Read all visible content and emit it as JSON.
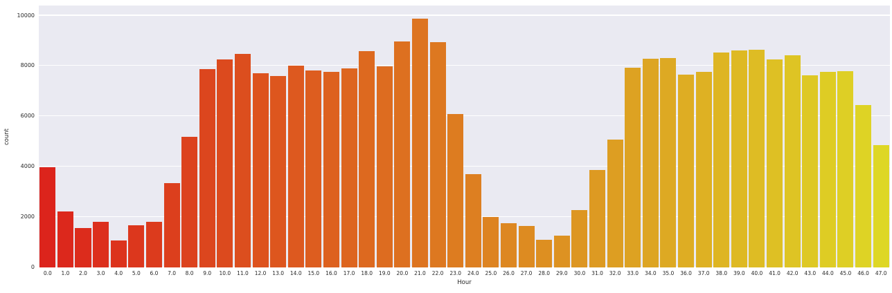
{
  "figure": {
    "background": "#ffffff",
    "plot_background": "#eaeaf2",
    "grid_color": "#ffffff",
    "text_color": "#262626",
    "bar_color_start": "#dc241c",
    "bar_color_end": "#ded725"
  },
  "chart_data": {
    "type": "bar",
    "title": "",
    "xlabel": "Hour",
    "ylabel": "count",
    "categories": [
      "0.0",
      "1.0",
      "2.0",
      "3.0",
      "4.0",
      "5.0",
      "6.0",
      "7.0",
      "8.0",
      "9.0",
      "10.0",
      "11.0",
      "12.0",
      "13.0",
      "14.0",
      "15.0",
      "16.0",
      "17.0",
      "18.0",
      "19.0",
      "20.0",
      "21.0",
      "22.0",
      "23.0",
      "24.0",
      "25.0",
      "26.0",
      "27.0",
      "28.0",
      "29.0",
      "30.0",
      "31.0",
      "32.0",
      "33.0",
      "34.0",
      "35.0",
      "36.0",
      "37.0",
      "38.0",
      "39.0",
      "40.0",
      "41.0",
      "42.0",
      "43.0",
      "44.0",
      "45.0",
      "46.0",
      "47.0"
    ],
    "values": [
      3970,
      2210,
      1570,
      1820,
      1060,
      1670,
      1810,
      3360,
      5180,
      7880,
      8270,
      8490,
      7710,
      7590,
      8010,
      7820,
      7770,
      7890,
      8580,
      7990,
      8960,
      9870,
      8950,
      6080,
      3710,
      1990,
      1760,
      1660,
      1110,
      1260,
      2270,
      3860,
      5090,
      7930,
      8280,
      8310,
      7660,
      7770,
      8530,
      8610,
      8650,
      8260,
      8420,
      7640,
      7760,
      7790,
      6450,
      4850
    ],
    "yticks": [
      0,
      2000,
      4000,
      6000,
      8000,
      10000
    ],
    "ylim": [
      0,
      10400
    ],
    "grid": "horizontal",
    "legend": "none",
    "bar_width_fraction": 0.9
  }
}
